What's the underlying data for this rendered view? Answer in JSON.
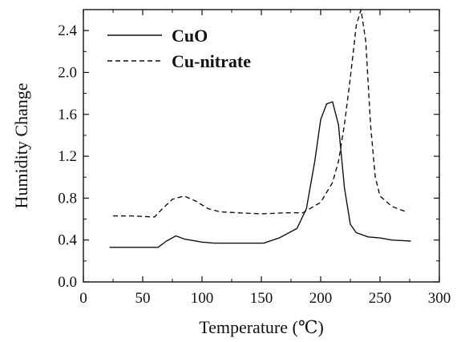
{
  "chart_data": {
    "type": "line",
    "xlabel": "Temperature (℃)",
    "ylabel": "Humidity Change",
    "xlim": [
      0,
      300
    ],
    "ylim": [
      0.0,
      2.6
    ],
    "xticks": [
      0,
      50,
      100,
      150,
      200,
      250,
      300
    ],
    "yticks": [
      0.0,
      0.4,
      0.8,
      1.2,
      1.6,
      2.0,
      2.4
    ],
    "xtick_labels": [
      "0",
      "50",
      "100",
      "150",
      "200",
      "250",
      "300"
    ],
    "ytick_labels": [
      "0.0",
      "0.4",
      "0.8",
      "1.2",
      "1.6",
      "2.0",
      "2.4"
    ],
    "grid": false,
    "legend_position": "top-left",
    "series": [
      {
        "name": "CuO",
        "style": "solid",
        "color": "#111111",
        "x": [
          22,
          40,
          63,
          70,
          78,
          85,
          100,
          110,
          130,
          152,
          165,
          180,
          188,
          195,
          200,
          205,
          210,
          215,
          220,
          225,
          230,
          240,
          250,
          260,
          276
        ],
        "y": [
          0.33,
          0.33,
          0.33,
          0.39,
          0.44,
          0.41,
          0.38,
          0.37,
          0.37,
          0.37,
          0.42,
          0.51,
          0.7,
          1.15,
          1.55,
          1.7,
          1.72,
          1.5,
          0.9,
          0.55,
          0.47,
          0.43,
          0.42,
          0.4,
          0.39
        ]
      },
      {
        "name": "Cu-nitrate",
        "style": "dashed",
        "color": "#111111",
        "x": [
          25,
          40,
          60,
          65,
          75,
          85,
          95,
          105,
          115,
          130,
          150,
          170,
          185,
          200,
          210,
          215,
          220,
          225,
          230,
          234,
          238,
          242,
          246,
          250,
          260,
          272
        ],
        "y": [
          0.63,
          0.63,
          0.62,
          0.68,
          0.79,
          0.82,
          0.77,
          0.7,
          0.67,
          0.66,
          0.65,
          0.66,
          0.66,
          0.76,
          0.95,
          1.15,
          1.5,
          1.95,
          2.45,
          2.6,
          2.3,
          1.5,
          1.0,
          0.82,
          0.72,
          0.67
        ]
      }
    ]
  }
}
